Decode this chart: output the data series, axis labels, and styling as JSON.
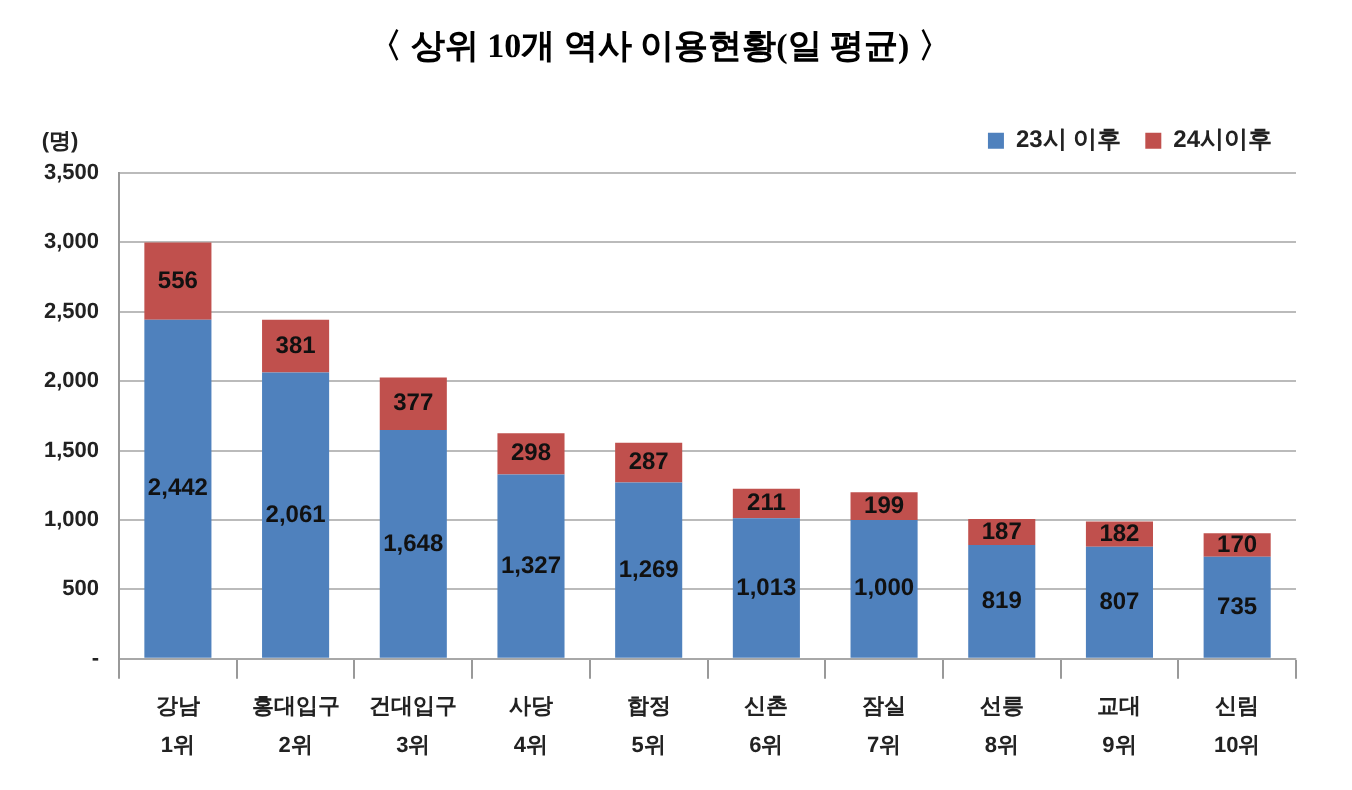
{
  "chart_data": {
    "type": "bar",
    "title": "〈 상위 10개 역사 이용현황(일 평균) 〉",
    "ylabel": "(명)",
    "categories": [
      "강남\n1위",
      "홍대입구\n2위",
      "건대입구\n3위",
      "사당\n4위",
      "합정\n5위",
      "신촌\n6위",
      "잠실\n7위",
      "선릉\n8위",
      "교대\n9위",
      "신림\n10위"
    ],
    "series": [
      {
        "name": "23시 이후",
        "color": "#4f81bd",
        "values": [
          2442,
          2061,
          1648,
          1327,
          1269,
          1013,
          1000,
          819,
          807,
          735
        ],
        "value_labels": [
          "2,442",
          "2,061",
          "1,648",
          "1,327",
          "1,269",
          "1,013",
          "1,000",
          "819",
          "807",
          "735"
        ]
      },
      {
        "name": "24시이후",
        "color": "#c0504d",
        "values": [
          556,
          381,
          377,
          298,
          287,
          211,
          199,
          187,
          182,
          170
        ]
      }
    ],
    "stacked": true,
    "data_labels": true,
    "ylim": [
      0,
      3500
    ],
    "yticks": [
      {
        "value": 0,
        "label": "-"
      },
      500,
      {
        "value": 1000,
        "label": "1,000"
      },
      {
        "value": 1500,
        "label": "1,500"
      },
      {
        "value": 2000,
        "label": "2,000"
      },
      {
        "value": 2500,
        "label": "2,500"
      },
      {
        "value": 3000,
        "label": "3,000"
      },
      {
        "value": 3500,
        "label": "3,500"
      }
    ],
    "grid": "y",
    "legend": "top right"
  }
}
